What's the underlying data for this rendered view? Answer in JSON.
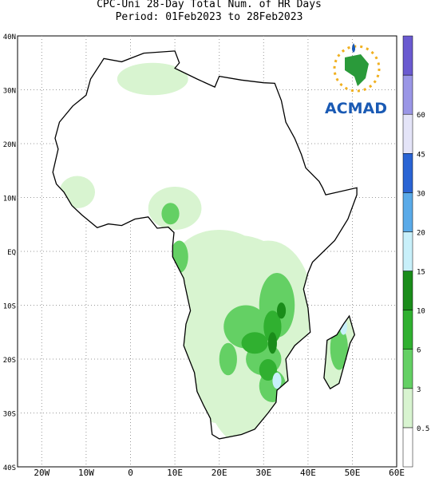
{
  "header": {
    "title": [
      "CPC-Uni 28-Day Total Num. of HR Days",
      "Period: 01Feb2023 to 28Feb2023"
    ]
  },
  "map": {
    "lon_labels": [
      "20W",
      "10W",
      "0",
      "10E",
      "20E",
      "30E",
      "40E",
      "50E",
      "60E"
    ],
    "lat_labels": [
      "40N",
      "30N",
      "20N",
      "10N",
      "EQ",
      "10S",
      "20S",
      "30S",
      "40S"
    ]
  },
  "legend": {
    "labels": [
      "0.5",
      "3",
      "6",
      "10",
      "15",
      "20",
      "30",
      "45",
      "60"
    ],
    "colors": [
      "#ffffff",
      "#d8f4d0",
      "#64d064",
      "#30b030",
      "#1a8c1a",
      "#c8f0fa",
      "#5aaae8",
      "#2a64d4",
      "#e4e4f8",
      "#9a96e6",
      "#6a5ad0"
    ]
  },
  "logo": {
    "text": "ACMAD"
  }
}
